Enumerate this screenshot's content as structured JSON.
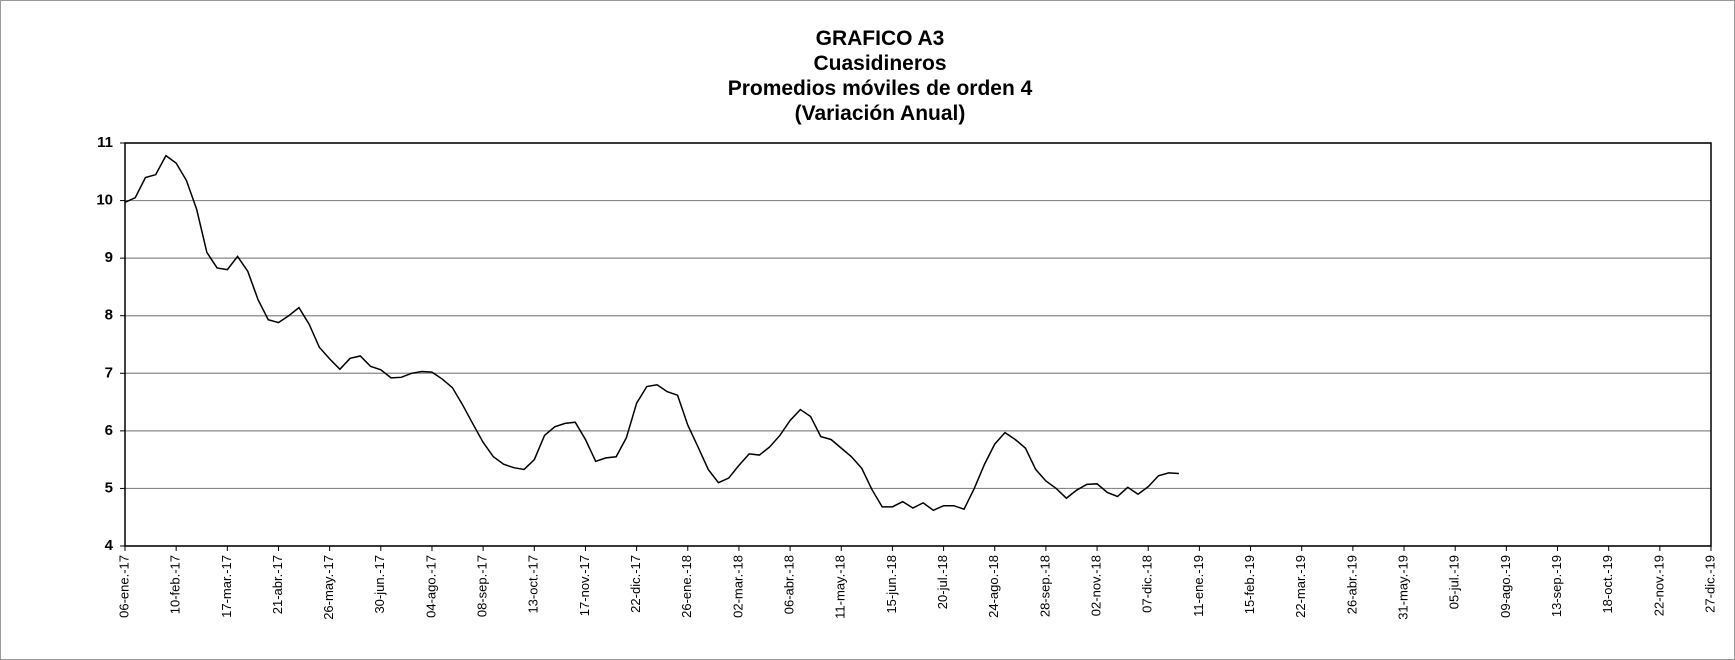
{
  "chart_data": {
    "type": "line",
    "title_lines": [
      "GRAFICO A3",
      "Cuasidineros",
      "Promedios móviles de orden 4",
      "(Variación Anual)"
    ],
    "categories": [
      "06-ene.-17",
      null,
      null,
      null,
      null,
      "10-feb.-17",
      null,
      null,
      null,
      null,
      "17-mar.-17",
      null,
      null,
      null,
      null,
      "21-abr.-17",
      null,
      null,
      null,
      null,
      "26-may.-17",
      null,
      null,
      null,
      null,
      "30-jun.-17",
      null,
      null,
      null,
      null,
      "04-ago.-17",
      null,
      null,
      null,
      null,
      "08-sep.-17",
      null,
      null,
      null,
      null,
      "13-oct.-17",
      null,
      null,
      null,
      null,
      "17-nov.-17",
      null,
      null,
      null,
      null,
      "22-dic.-17",
      null,
      null,
      null,
      null,
      "26-ene.-18",
      null,
      null,
      null,
      null,
      "02-mar.-18",
      null,
      null,
      null,
      null,
      "06-abr.-18",
      null,
      null,
      null,
      null,
      "11-may.-18",
      null,
      null,
      null,
      null,
      "15-jun.-18",
      null,
      null,
      null,
      null,
      "20-jul.-18",
      null,
      null,
      null,
      null,
      "24-ago.-18",
      null,
      null,
      null,
      null,
      "28-sep.-18",
      null,
      null,
      null,
      null,
      "02-nov.-18",
      null,
      null,
      null,
      null,
      "07-dic.-18",
      null,
      null,
      null,
      null,
      "11-ene.-19",
      null,
      null,
      null,
      null,
      "15-feb.-19",
      null,
      null,
      null,
      null,
      "22-mar.-19",
      null,
      null,
      null,
      null,
      "26-abr.-19",
      null,
      null,
      null,
      null,
      "31-may.-19",
      null,
      null,
      null,
      null,
      "05-jul.-19",
      null,
      null,
      null,
      null,
      "09-ago.-19",
      null,
      null,
      null,
      null,
      "13-sep.-19",
      null,
      null,
      null,
      null,
      "18-oct.-19",
      null,
      null,
      null,
      null,
      "22-nov.-19",
      null,
      null,
      null,
      null,
      "27-dic.-19"
    ],
    "series": [
      {
        "color": "#000000",
        "values": [
          9.97,
          10.05,
          10.4,
          10.45,
          10.78,
          10.65,
          10.35,
          9.85,
          9.1,
          8.83,
          8.8,
          9.03,
          8.77,
          8.28,
          7.93,
          7.88,
          8.0,
          8.14,
          7.85,
          7.45,
          7.25,
          7.07,
          7.26,
          7.3,
          7.12,
          7.06,
          6.92,
          6.93,
          7.0,
          7.03,
          7.02,
          6.9,
          6.75,
          6.45,
          6.12,
          5.8,
          5.55,
          5.42,
          5.36,
          5.33,
          5.5,
          5.92,
          6.07,
          6.13,
          6.15,
          5.85,
          5.47,
          5.53,
          5.55,
          5.88,
          6.48,
          6.77,
          6.8,
          6.68,
          6.62,
          6.1,
          5.72,
          5.33,
          5.1,
          5.18,
          5.4,
          5.6,
          5.58,
          5.72,
          5.92,
          6.18,
          6.37,
          6.25,
          5.9,
          5.85,
          5.7,
          5.55,
          5.35,
          4.98,
          4.68,
          4.68,
          4.77,
          4.66,
          4.75,
          4.62,
          4.7,
          4.7,
          4.64,
          5.0,
          5.42,
          5.77,
          5.97,
          5.85,
          5.7,
          5.33,
          5.13,
          5.0,
          4.83,
          4.97,
          5.07,
          5.08,
          4.93,
          4.86,
          5.02,
          4.9,
          5.03,
          5.22,
          5.27,
          5.26,
          null,
          null,
          null,
          null,
          null,
          null,
          null,
          null,
          null,
          null,
          null,
          null,
          null,
          null,
          null,
          null,
          null,
          null,
          null,
          null,
          null,
          null,
          null,
          null,
          null,
          null,
          null,
          null,
          null,
          null,
          null,
          null,
          null,
          null,
          null,
          null,
          null,
          null,
          null,
          null,
          null,
          null,
          null,
          null,
          null,
          null,
          null,
          null,
          null,
          null,
          null,
          null
        ]
      }
    ],
    "ylim": [
      4,
      11
    ],
    "yticks": [
      4,
      5,
      6,
      7,
      8,
      9,
      10,
      11
    ],
    "grid": true
  }
}
